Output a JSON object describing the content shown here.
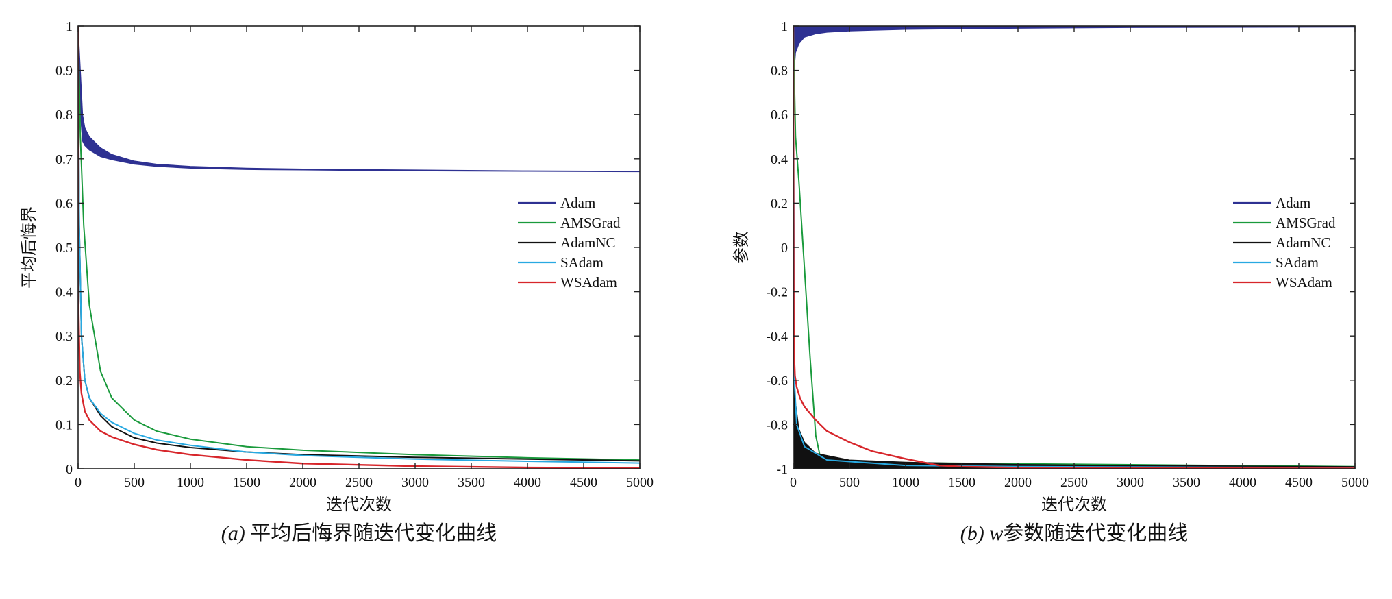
{
  "chart_data": [
    {
      "type": "line",
      "caption_prefix": "(a)",
      "caption_text": "平均后悔界随迭代变化曲线",
      "xlabel": "迭代次数",
      "ylabel": "平均后悔界",
      "xlim": [
        0,
        5000
      ],
      "ylim": [
        0,
        1
      ],
      "xticks": [
        0,
        500,
        1000,
        1500,
        2000,
        2500,
        3000,
        3500,
        4000,
        4500,
        5000
      ],
      "xtick_labels": [
        "0",
        "500",
        "1000",
        "1500",
        "2000",
        "2500",
        "3000",
        "3500",
        "4000",
        "4500",
        "5000"
      ],
      "yticks": [
        0,
        0.1,
        0.2,
        0.3,
        0.4,
        0.5,
        0.6,
        0.7,
        0.8,
        0.9,
        1
      ],
      "ytick_labels": [
        "0",
        "0.1",
        "0.2",
        "0.3",
        "0.4",
        "0.5",
        "0.6",
        "0.7",
        "0.8",
        "0.9",
        "1"
      ],
      "legend_position": "center-right",
      "series": [
        {
          "name": "Adam",
          "color": "#2e3192",
          "style": "band",
          "x": [
            0,
            20,
            40,
            60,
            100,
            200,
            300,
            500,
            700,
            1000,
            1500,
            2000,
            3000,
            4000,
            5000
          ],
          "upper": [
            1.0,
            0.9,
            0.8,
            0.77,
            0.75,
            0.725,
            0.71,
            0.695,
            0.688,
            0.683,
            0.679,
            0.677,
            0.675,
            0.673,
            0.672
          ],
          "lower": [
            1.0,
            0.8,
            0.74,
            0.73,
            0.72,
            0.705,
            0.698,
            0.688,
            0.683,
            0.679,
            0.676,
            0.675,
            0.673,
            0.672,
            0.671
          ]
        },
        {
          "name": "AMSGrad",
          "color": "#1a9a3c",
          "style": "line",
          "x": [
            0,
            20,
            50,
            100,
            200,
            300,
            500,
            700,
            1000,
            1500,
            2000,
            3000,
            4000,
            5000
          ],
          "y": [
            1.0,
            0.75,
            0.55,
            0.37,
            0.22,
            0.16,
            0.11,
            0.085,
            0.067,
            0.05,
            0.042,
            0.032,
            0.025,
            0.02
          ]
        },
        {
          "name": "AdamNC",
          "color": "#111111",
          "style": "line",
          "x": [
            0,
            10,
            30,
            60,
            100,
            200,
            300,
            500,
            700,
            1000,
            1500,
            2000,
            3000,
            4000,
            5000
          ],
          "y": [
            1.0,
            0.55,
            0.3,
            0.2,
            0.16,
            0.12,
            0.095,
            0.07,
            0.058,
            0.048,
            0.038,
            0.032,
            0.026,
            0.022,
            0.018
          ]
        },
        {
          "name": "SAdam",
          "color": "#29a9e1",
          "style": "line",
          "x": [
            0,
            10,
            30,
            60,
            100,
            200,
            300,
            500,
            700,
            1000,
            1500,
            2000,
            3000,
            4000,
            5000
          ],
          "y": [
            1.0,
            0.55,
            0.3,
            0.2,
            0.16,
            0.125,
            0.105,
            0.08,
            0.065,
            0.053,
            0.038,
            0.03,
            0.022,
            0.017,
            0.013
          ]
        },
        {
          "name": "WSAdam",
          "color": "#d7262b",
          "style": "line",
          "x": [
            0,
            5,
            15,
            30,
            60,
            100,
            200,
            300,
            500,
            700,
            1000,
            1500,
            2000,
            3000,
            4000,
            5000
          ],
          "y": [
            1.0,
            0.35,
            0.22,
            0.17,
            0.13,
            0.11,
            0.085,
            0.072,
            0.055,
            0.043,
            0.032,
            0.02,
            0.012,
            0.006,
            0.003,
            0.002
          ]
        }
      ]
    },
    {
      "type": "line",
      "caption_prefix": "(b)",
      "caption_var": "w",
      "caption_text": "参数随迭代变化曲线",
      "xlabel": "迭代次数",
      "ylabel": "参数",
      "xlim": [
        0,
        5000
      ],
      "ylim": [
        -1,
        1
      ],
      "xticks": [
        0,
        500,
        1000,
        1500,
        2000,
        2500,
        3000,
        3500,
        4000,
        4500,
        5000
      ],
      "xtick_labels": [
        "0",
        "500",
        "1000",
        "1500",
        "2000",
        "2500",
        "3000",
        "3500",
        "4000",
        "4500",
        "5000"
      ],
      "yticks": [
        -1,
        -0.8,
        -0.6,
        -0.4,
        -0.2,
        0,
        0.2,
        0.4,
        0.6,
        0.8,
        1
      ],
      "ytick_labels": [
        "-1",
        "-0.8",
        "-0.6",
        "-0.4",
        "-0.2",
        "0",
        "0.2",
        "0.4",
        "0.6",
        "0.8",
        "1"
      ],
      "legend_position": "center-right",
      "series": [
        {
          "name": "Adam",
          "color": "#2e3192",
          "style": "band",
          "x": [
            0,
            5,
            20,
            50,
            100,
            200,
            300,
            500,
            1000,
            2000,
            3000,
            5000
          ],
          "upper": [
            1.0,
            1.0,
            1.0,
            1.0,
            1.0,
            1.0,
            1.0,
            1.0,
            1.0,
            1.0,
            1.0,
            1.0
          ],
          "lower": [
            1.0,
            0.78,
            0.88,
            0.92,
            0.95,
            0.965,
            0.972,
            0.978,
            0.985,
            0.99,
            0.993,
            0.995
          ]
        },
        {
          "name": "AMSGrad",
          "color": "#1a9a3c",
          "style": "line",
          "x": [
            0,
            20,
            50,
            100,
            150,
            200,
            250,
            300,
            5000
          ],
          "y": [
            1.0,
            0.5,
            0.3,
            -0.1,
            -0.5,
            -0.85,
            -0.97,
            -0.97,
            -0.99
          ]
        },
        {
          "name": "AdamNC",
          "color": "#111111",
          "style": "band",
          "x": [
            0,
            10,
            20,
            50,
            100,
            200,
            500,
            1000,
            2000,
            3000,
            5000
          ],
          "upper": [
            1.0,
            -0.6,
            -0.7,
            -0.82,
            -0.88,
            -0.93,
            -0.96,
            -0.97,
            -0.98,
            -0.985,
            -0.99
          ],
          "lower": [
            1.0,
            -1.0,
            -1.0,
            -1.0,
            -1.0,
            -1.0,
            -1.0,
            -1.0,
            -1.0,
            -1.0,
            -1.0
          ]
        },
        {
          "name": "SAdam",
          "color": "#29a9e1",
          "style": "line",
          "x": [
            0,
            10,
            30,
            100,
            300,
            1000,
            2000,
            5000
          ],
          "y": [
            1.0,
            -0.6,
            -0.8,
            -0.9,
            -0.96,
            -0.985,
            -0.99,
            -0.995
          ]
        },
        {
          "name": "WSAdam",
          "color": "#d7262b",
          "style": "line",
          "x": [
            0,
            5,
            15,
            30,
            60,
            100,
            200,
            300,
            500,
            700,
            1000,
            1300,
            1500,
            2000,
            3000,
            5000
          ],
          "y": [
            1.0,
            -0.45,
            -0.58,
            -0.63,
            -0.68,
            -0.72,
            -0.78,
            -0.83,
            -0.88,
            -0.92,
            -0.955,
            -0.985,
            -0.99,
            -0.995,
            -0.997,
            -0.998
          ]
        }
      ]
    }
  ]
}
